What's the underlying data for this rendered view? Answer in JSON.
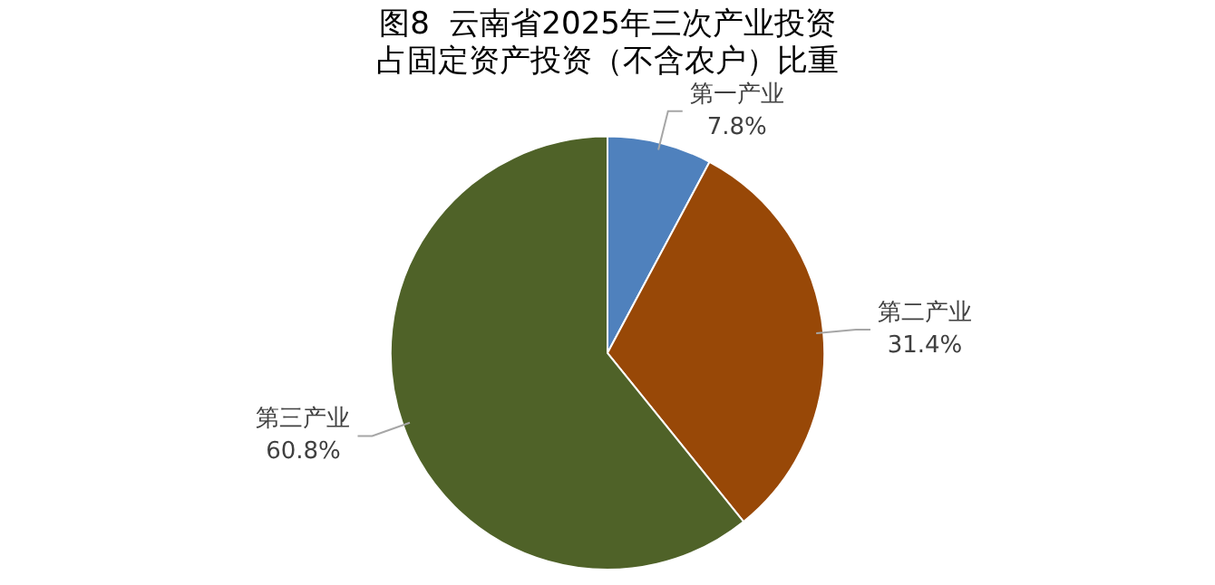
{
  "chart_data": {
    "type": "pie",
    "title": "图8  云南省2025年三次产业投资占固定资产投资（不含农户）比重",
    "categories": [
      "第一产业",
      "第二产业",
      "第三产业"
    ],
    "values": [
      7.8,
      31.4,
      60.8
    ],
    "colors": [
      "#4f81bd",
      "#984807",
      "#4f6228"
    ],
    "value_labels": [
      "7.8%",
      "31.4%",
      "60.8%"
    ],
    "legend": false
  }
}
